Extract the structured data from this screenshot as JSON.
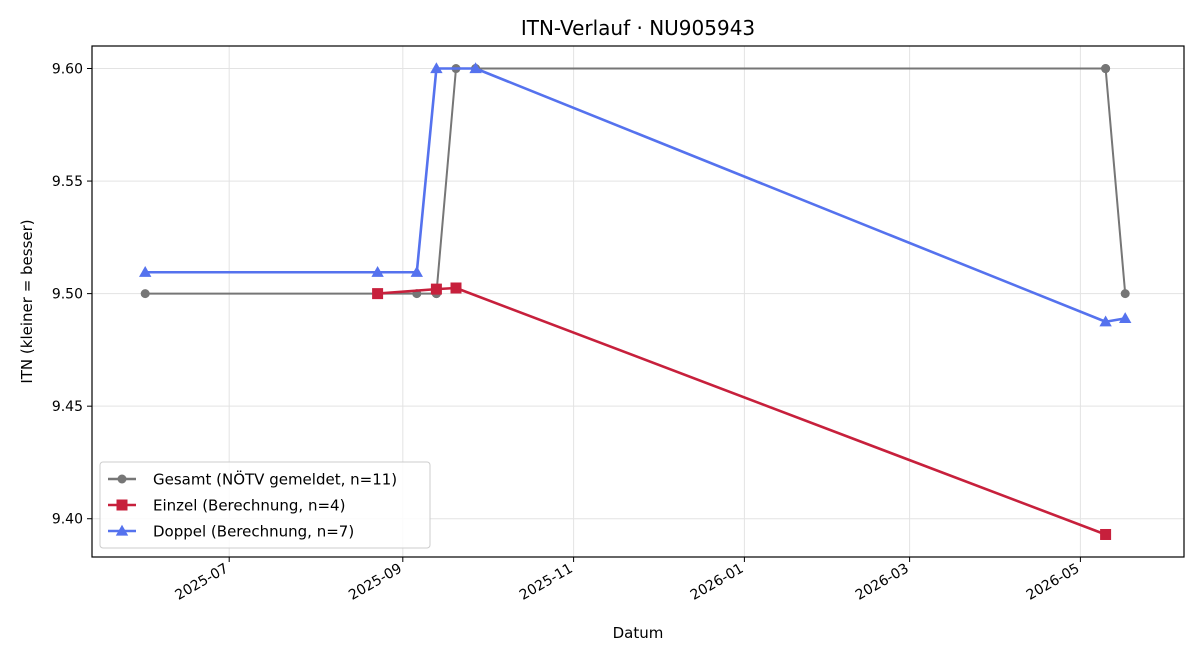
{
  "chart_data": {
    "type": "line",
    "title": "ITN-Verlauf · NU905943",
    "xlabel": "Datum",
    "ylabel": "ITN  (kleiner = besser)",
    "x_is_date": true,
    "xlim": [
      "2025-05-13",
      "2026-06-07"
    ],
    "ylim": [
      9.383,
      9.61
    ],
    "x_ticks": [
      "2025-07-01",
      "2025-09-01",
      "2025-11-01",
      "2026-01-01",
      "2026-03-01",
      "2026-05-01"
    ],
    "x_tick_labels": [
      "2025-07",
      "2025-09",
      "2025-11",
      "2026-01",
      "2026-03",
      "2026-05"
    ],
    "y_ticks": [
      9.4,
      9.45,
      9.5,
      9.55,
      9.6
    ],
    "y_tick_labels": [
      "9.40",
      "9.45",
      "9.50",
      "9.55",
      "9.60"
    ],
    "grid": true,
    "legend_position": "lower-left",
    "series": [
      {
        "name": "Gesamt (NÖTV gemeldet, n=11)",
        "color": "#767676",
        "marker": "circle",
        "points": [
          {
            "x": "2025-06-01",
            "y": 9.5
          },
          {
            "x": "2025-08-23",
            "y": 9.5
          },
          {
            "x": "2025-09-06",
            "y": 9.5
          },
          {
            "x": "2025-09-13",
            "y": 9.5
          },
          {
            "x": "2025-09-13",
            "y": 9.5
          },
          {
            "x": "2025-09-20",
            "y": 9.6
          },
          {
            "x": "2025-09-27",
            "y": 9.6
          },
          {
            "x": "2025-09-27",
            "y": 9.6
          },
          {
            "x": "2026-05-10",
            "y": 9.6
          },
          {
            "x": "2026-05-10",
            "y": 9.6
          },
          {
            "x": "2026-05-17",
            "y": 9.5
          }
        ]
      },
      {
        "name": "Einzel (Berechnung, n=4)",
        "color": "#c7203c",
        "marker": "square",
        "points": [
          {
            "x": "2025-08-23",
            "y": 9.5
          },
          {
            "x": "2025-09-13",
            "y": 9.502
          },
          {
            "x": "2025-09-20",
            "y": 9.5025
          },
          {
            "x": "2026-05-10",
            "y": 9.393
          }
        ]
      },
      {
        "name": "Doppel (Berechnung, n=7)",
        "color": "#5572ee",
        "marker": "triangle",
        "points": [
          {
            "x": "2025-06-01",
            "y": 9.5095
          },
          {
            "x": "2025-08-23",
            "y": 9.5095
          },
          {
            "x": "2025-09-06",
            "y": 9.5095
          },
          {
            "x": "2025-09-13",
            "y": 9.6
          },
          {
            "x": "2025-09-27",
            "y": 9.6
          },
          {
            "x": "2026-05-10",
            "y": 9.4875
          },
          {
            "x": "2026-05-17",
            "y": 9.489
          }
        ]
      }
    ]
  }
}
